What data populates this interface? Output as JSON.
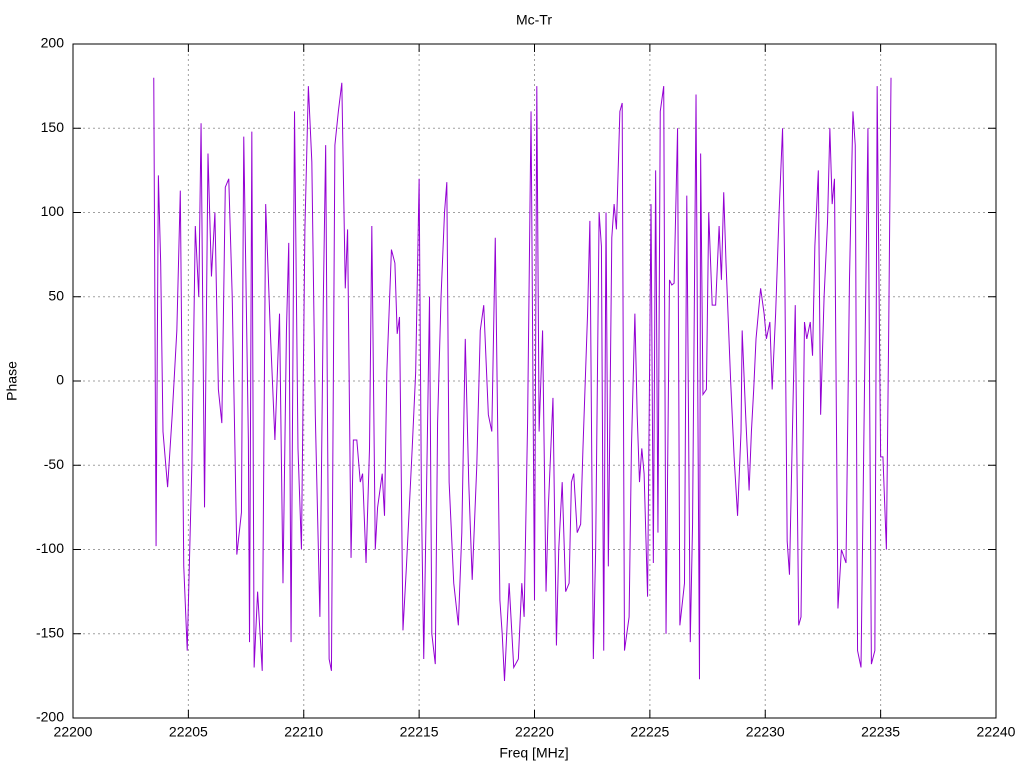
{
  "chart_data": {
    "type": "line",
    "title": "Mc-Tr",
    "x_label": "Freq [MHz]",
    "y_label": "Phase",
    "x": [
      22203.5,
      22203.6,
      22203.7,
      22203.8,
      22203.9,
      22204.1,
      22204.3,
      22204.5,
      22204.65,
      22204.8,
      22204.95,
      22205.15,
      22205.3,
      22205.45,
      22205.55,
      22205.7,
      22205.85,
      22206.0,
      22206.15,
      22206.3,
      22206.45,
      22206.6,
      22206.75,
      22206.9,
      22207.1,
      22207.3,
      22207.4,
      22207.6,
      22207.65,
      22207.75,
      22207.85,
      22208.0,
      22208.2,
      22208.35,
      22208.55,
      22208.75,
      22208.95,
      22209.1,
      22209.25,
      22209.35,
      22209.45,
      22209.6,
      22209.75,
      22209.9,
      22210.05,
      22210.2,
      22210.35,
      22210.5,
      22210.7,
      22210.85,
      22210.95,
      22211.1,
      22211.2,
      22211.35,
      22211.5,
      22211.65,
      22211.8,
      22211.9,
      22212.05,
      22212.15,
      22212.3,
      22212.45,
      22212.55,
      22212.7,
      22212.85,
      22212.95,
      22213.1,
      22213.2,
      22213.4,
      22213.5,
      22213.6,
      22213.8,
      22213.95,
      22214.05,
      22214.15,
      22214.3,
      22214.45,
      22214.7,
      22214.85,
      22215.0,
      22215.1,
      22215.2,
      22215.35,
      22215.45,
      22215.55,
      22215.7,
      22215.8,
      22215.95,
      22216.1,
      22216.2,
      22216.3,
      22216.5,
      22216.7,
      22216.85,
      22217.0,
      22217.15,
      22217.3,
      22217.5,
      22217.65,
      22217.8,
      22218.0,
      22218.15,
      22218.3,
      22218.5,
      22218.6,
      22218.7,
      22218.9,
      22219.1,
      22219.3,
      22219.45,
      22219.55,
      22219.7,
      22219.85,
      22220.0,
      22220.1,
      22220.2,
      22220.35,
      22220.5,
      22220.6,
      22220.8,
      22220.95,
      22221.05,
      22221.2,
      22221.35,
      22221.5,
      22221.6,
      22221.7,
      22221.85,
      22222.0,
      22222.1,
      22222.3,
      22222.4,
      22222.55,
      22222.65,
      22222.8,
      22222.9,
      22223.0,
      22223.1,
      22223.2,
      22223.35,
      22223.45,
      22223.55,
      22223.7,
      22223.8,
      22223.9,
      22224.1,
      22224.2,
      22224.35,
      22224.45,
      22224.55,
      22224.65,
      22224.75,
      22224.9,
      22225.05,
      22225.15,
      22225.25,
      22225.35,
      22225.45,
      22225.6,
      22225.7,
      22225.85,
      22225.95,
      22226.05,
      22226.2,
      22226.3,
      22226.5,
      22226.6,
      22226.75,
      22226.85,
      22227.0,
      22227.15,
      22227.2,
      22227.3,
      22227.45,
      22227.55,
      22227.7,
      22227.85,
      22228.0,
      22228.1,
      22228.2,
      22228.3,
      22228.5,
      22228.65,
      22228.8,
      22228.95,
      22229.0,
      22229.15,
      22229.3,
      22229.4,
      22229.5,
      22229.6,
      22229.8,
      22229.95,
      22230.05,
      22230.2,
      22230.3,
      22230.45,
      22230.6,
      22230.75,
      22230.85,
      22230.95,
      22231.05,
      22231.2,
      22231.3,
      22231.45,
      22231.55,
      22231.7,
      22231.8,
      22231.95,
      22232.05,
      22232.15,
      22232.3,
      22232.4,
      22232.55,
      22232.7,
      22232.8,
      22232.9,
      22233.0,
      22233.15,
      22233.3,
      22233.5,
      22233.65,
      22233.8,
      22233.9,
      22234.0,
      22234.15,
      22234.3,
      22234.45,
      22234.6,
      22234.75,
      22234.85,
      22235.0,
      22235.1,
      22235.25,
      22235.35,
      22235.45
    ],
    "series": [
      {
        "name": "Mc-Tr",
        "color": "#9400d3",
        "values": [
          180,
          -98,
          122,
          70,
          -30,
          -63,
          -20,
          30,
          113,
          -110,
          -160,
          -50,
          92,
          50,
          153,
          -75,
          135,
          62,
          100,
          -5,
          -25,
          115,
          120,
          50,
          -103,
          -78,
          145,
          -35,
          -155,
          148,
          -170,
          -125,
          -172,
          105,
          30,
          -35,
          40,
          -120,
          30,
          82,
          -155,
          160,
          -40,
          -100,
          90,
          175,
          130,
          -20,
          -140,
          50,
          140,
          -165,
          -172,
          140,
          160,
          177,
          55,
          90,
          -105,
          -35,
          -35,
          -60,
          -55,
          -108,
          -40,
          92,
          -100,
          -75,
          -55,
          -80,
          5,
          78,
          70,
          28,
          38,
          -148,
          -110,
          -40,
          5,
          120,
          -70,
          -165,
          -40,
          50,
          -150,
          -168,
          -25,
          50,
          100,
          118,
          -60,
          -120,
          -145,
          -90,
          25,
          -60,
          -118,
          -50,
          30,
          45,
          -20,
          -30,
          85,
          -130,
          -150,
          -178,
          -120,
          -170,
          -165,
          -120,
          -140,
          -25,
          160,
          -130,
          175,
          -30,
          30,
          -125,
          -75,
          -10,
          -157,
          -100,
          -60,
          -125,
          -120,
          -60,
          -55,
          -90,
          -85,
          -40,
          40,
          95,
          -165,
          -100,
          100,
          80,
          -160,
          100,
          -110,
          85,
          105,
          90,
          160,
          165,
          -160,
          -140,
          -40,
          40,
          -20,
          -60,
          -40,
          -55,
          -128,
          105,
          -108,
          125,
          -90,
          160,
          175,
          -150,
          60,
          57,
          58,
          150,
          -145,
          -120,
          110,
          -155,
          -85,
          170,
          -177,
          135,
          -8,
          -5,
          100,
          45,
          45,
          92,
          60,
          112,
          70,
          0,
          -45,
          -80,
          -30,
          30,
          -20,
          -65,
          -30,
          -5,
          25,
          55,
          40,
          25,
          35,
          -5,
          40,
          100,
          150,
          60,
          -95,
          -115,
          -15,
          45,
          -145,
          -140,
          35,
          25,
          35,
          15,
          80,
          125,
          -20,
          50,
          95,
          150,
          105,
          120,
          -135,
          -100,
          -108,
          60,
          160,
          140,
          -160,
          -170,
          -5,
          150,
          -168,
          -160,
          175,
          -45,
          -45,
          -100,
          30,
          180
        ]
      }
    ],
    "xlim": [
      22200,
      22240
    ],
    "xticks": [
      22200,
      22205,
      22210,
      22215,
      22220,
      22225,
      22230,
      22235,
      22240
    ],
    "ylim": [
      -200,
      200
    ],
    "yticks": [
      -200,
      -150,
      -100,
      -50,
      0,
      50,
      100,
      150,
      200
    ],
    "grid": true
  }
}
